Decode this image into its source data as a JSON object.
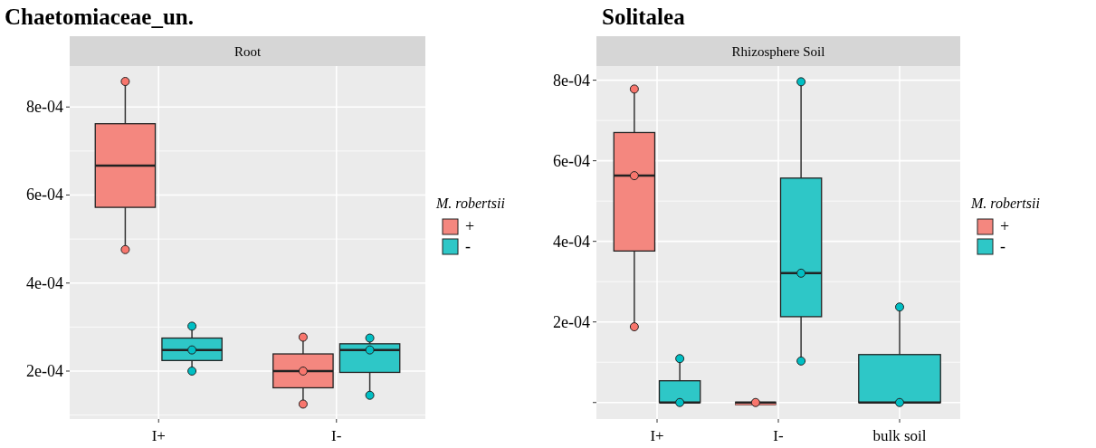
{
  "chart_data": [
    {
      "type": "box",
      "title": "Chaetomiaceae_un.",
      "subtitle": "Root",
      "legend_title": "M. robertsii",
      "legend": "right",
      "grid": true,
      "categories": [
        "I+",
        "I-"
      ],
      "ylim": [
        9.1e-05,
        0.000893
      ],
      "yticks": [
        {
          "value": 0.0002,
          "label": "2e-04"
        },
        {
          "value": 0.0004,
          "label": "4e-04"
        },
        {
          "value": 0.0006,
          "label": "6e-04"
        },
        {
          "value": 0.0008,
          "label": "8e-04"
        }
      ],
      "series": [
        {
          "name": "+",
          "color": "#f4877f",
          "boxes": [
            {
              "low": 0.000476,
              "q1": 0.000572,
              "median": 0.000667,
              "q3": 0.000762,
              "high": 0.000858
            },
            {
              "low": 0.000125,
              "q1": 0.000162,
              "median": 0.0002,
              "q3": 0.000239,
              "high": 0.000277
            }
          ]
        },
        {
          "name": "-",
          "color": "#2ec7c7",
          "boxes": [
            {
              "low": 0.0002,
              "q1": 0.000224,
              "median": 0.000248,
              "q3": 0.000275,
              "high": 0.000302
            },
            {
              "low": 0.000145,
              "q1": 0.000197,
              "median": 0.000248,
              "q3": 0.000262,
              "high": 0.000275
            }
          ]
        },
        {
          "type": "scatter",
          "color": "#f8766d",
          "x": [
            "I+",
            "I+",
            "I-",
            "I-",
            "I-"
          ],
          "values": [
            0.000858,
            0.000476,
            0.000277,
            0.0002,
            0.000125
          ]
        },
        {
          "type": "scatter",
          "color": "#00bfc4",
          "x": [
            "I+",
            "I+",
            "I+",
            "I-",
            "I-",
            "I-"
          ],
          "values": [
            0.000302,
            0.000248,
            0.0002,
            0.000275,
            0.000248,
            0.000145
          ]
        }
      ]
    },
    {
      "type": "box",
      "title": "Solitalea",
      "subtitle": "Rhizosphere Soil",
      "legend_title": "M. robertsii",
      "legend": "right",
      "grid": true,
      "categories": [
        "I+",
        "I-",
        "bulk soil"
      ],
      "ylim": [
        -4.1e-05,
        0.000835
      ],
      "yticks": [
        {
          "value": 0,
          "label": null
        },
        {
          "value": 0.0002,
          "label": "2e-04"
        },
        {
          "value": 0.0004,
          "label": "4e-04"
        },
        {
          "value": 0.0006,
          "label": "6e-04"
        },
        {
          "value": 0.0008,
          "label": "8e-04"
        }
      ],
      "series": [
        {
          "name": "+",
          "color": "#f4877f",
          "boxes": [
            {
              "low": 0.000188,
              "q1": 0.000376,
              "median": 0.000563,
              "q3": 0.00067,
              "high": 0.000778
            },
            {
              "low": 0,
              "q1": 0,
              "median": 0,
              "q3": 0,
              "high": 0
            },
            null
          ]
        },
        {
          "name": "-",
          "color": "#2ec7c7",
          "boxes": [
            {
              "low": 0,
              "q1": 0,
              "median": 0,
              "q3": 5.4e-05,
              "high": 0.000109
            },
            {
              "low": 0.000103,
              "q1": 0.000213,
              "median": 0.000321,
              "q3": 0.000557,
              "high": 0.000796
            },
            {
              "low": 0,
              "q1": 0,
              "median": 0,
              "q3": 0.000119,
              "high": 0.000237
            }
          ]
        },
        {
          "type": "scatter",
          "color": "#f8766d",
          "x": [
            "I+",
            "I+",
            "I+",
            "I-"
          ],
          "values": [
            0.000778,
            0.000563,
            0.000188,
            0
          ]
        },
        {
          "type": "scatter",
          "color": "#00bfc4",
          "x": [
            "I+",
            "I+",
            "I-",
            "I-",
            "I-",
            "bulk soil",
            "bulk soil"
          ],
          "values": [
            0.000109,
            0,
            0.000796,
            0.000321,
            0.000103,
            0.000237,
            0
          ]
        }
      ]
    }
  ]
}
